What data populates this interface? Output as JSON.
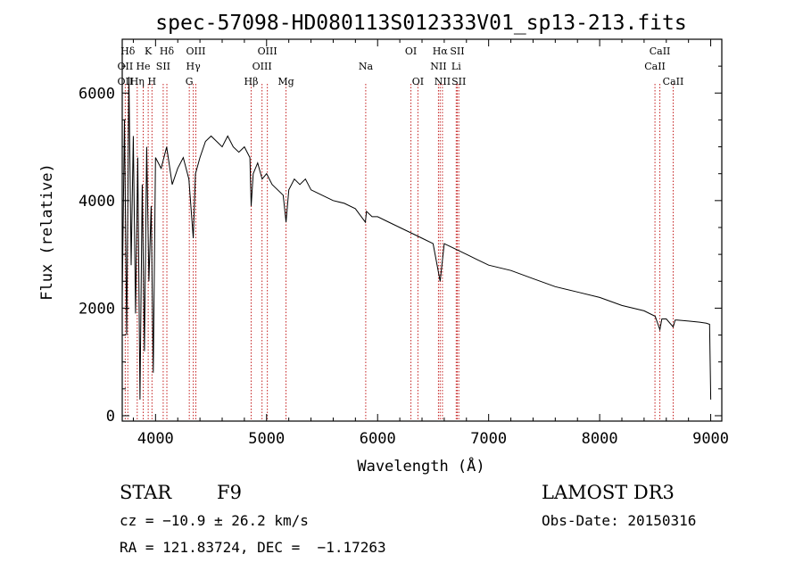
{
  "chart_data": {
    "type": "line",
    "title": "spec-57098-HD080113S012333V01_sp13-213.fits",
    "xlabel": "Wavelength (Å)",
    "ylabel": "Flux (relative)",
    "xlim": [
      3700,
      9100
    ],
    "ylim": [
      -100,
      7000
    ],
    "xticks": [
      4000,
      5000,
      6000,
      7000,
      8000,
      9000
    ],
    "yticks": [
      0,
      2000,
      4000,
      6000
    ],
    "series": [
      {
        "name": "flux",
        "x": [
          3700,
          3720,
          3740,
          3760,
          3780,
          3800,
          3820,
          3840,
          3860,
          3880,
          3900,
          3920,
          3940,
          3960,
          3980,
          4000,
          4050,
          4100,
          4150,
          4200,
          4250,
          4300,
          4340,
          4360,
          4400,
          4450,
          4500,
          4550,
          4600,
          4650,
          4700,
          4750,
          4800,
          4850,
          4861,
          4880,
          4920,
          4960,
          5000,
          5050,
          5100,
          5150,
          5175,
          5200,
          5250,
          5300,
          5350,
          5400,
          5450,
          5500,
          5600,
          5700,
          5800,
          5890,
          5900,
          5950,
          6000,
          6100,
          6200,
          6300,
          6400,
          6500,
          6563,
          6600,
          6700,
          6800,
          6900,
          7000,
          7200,
          7400,
          7600,
          7800,
          8000,
          8200,
          8400,
          8500,
          8542,
          8560,
          8600,
          8662,
          8680,
          8700,
          8800,
          8900,
          8960,
          8990,
          9000
        ],
        "y": [
          2200,
          5500,
          1500,
          6300,
          2800,
          5200,
          1900,
          4800,
          300,
          4300,
          1200,
          5000,
          2500,
          3900,
          800,
          4800,
          4600,
          5000,
          4300,
          4600,
          4800,
          4400,
          3300,
          4500,
          4800,
          5100,
          5200,
          5100,
          5000,
          5200,
          5000,
          4900,
          5000,
          4800,
          3900,
          4500,
          4700,
          4400,
          4500,
          4300,
          4200,
          4100,
          3600,
          4200,
          4400,
          4300,
          4400,
          4200,
          4150,
          4100,
          4000,
          3950,
          3850,
          3600,
          3800,
          3700,
          3700,
          3600,
          3500,
          3400,
          3300,
          3200,
          2500,
          3200,
          3100,
          3000,
          2900,
          2800,
          2700,
          2550,
          2400,
          2300,
          2200,
          2050,
          1950,
          1850,
          1600,
          1800,
          1800,
          1650,
          1780,
          1780,
          1760,
          1740,
          1720,
          1700,
          300
        ]
      }
    ],
    "spectral_lines": [
      {
        "label": "Hδ",
        "wavelength": 3750,
        "row": 1
      },
      {
        "label": "K",
        "wavelength": 3934,
        "row": 1
      },
      {
        "label": "Hδ",
        "wavelength": 4102,
        "row": 1
      },
      {
        "label": "OIII",
        "wavelength": 4363,
        "row": 1
      },
      {
        "label": "OIII",
        "wavelength": 5007,
        "row": 1
      },
      {
        "label": "OI",
        "wavelength": 6300,
        "row": 1
      },
      {
        "label": "Hα",
        "wavelength": 6563,
        "row": 1
      },
      {
        "label": "SII",
        "wavelength": 6717,
        "row": 1
      },
      {
        "label": "CaII",
        "wavelength": 8542,
        "row": 1
      },
      {
        "label": "OII",
        "wavelength": 3727,
        "row": 2
      },
      {
        "label": "He",
        "wavelength": 3889,
        "row": 2
      },
      {
        "label": "SII",
        "wavelength": 4069,
        "row": 2
      },
      {
        "label": "Hγ",
        "wavelength": 4340,
        "row": 2
      },
      {
        "label": "OIII",
        "wavelength": 4959,
        "row": 2
      },
      {
        "label": "Na",
        "wavelength": 5893,
        "row": 2
      },
      {
        "label": "NII",
        "wavelength": 6548,
        "row": 2
      },
      {
        "label": "Li",
        "wavelength": 6708,
        "row": 2
      },
      {
        "label": "CaII",
        "wavelength": 8498,
        "row": 2
      },
      {
        "label": "OII",
        "wavelength": 3727,
        "row": 3
      },
      {
        "label": "Hη",
        "wavelength": 3835,
        "row": 3
      },
      {
        "label": "H",
        "wavelength": 3968,
        "row": 3
      },
      {
        "label": "G",
        "wavelength": 4304,
        "row": 3
      },
      {
        "label": "Hβ",
        "wavelength": 4861,
        "row": 3
      },
      {
        "label": "Mg",
        "wavelength": 5175,
        "row": 3
      },
      {
        "label": "OI",
        "wavelength": 6363,
        "row": 3
      },
      {
        "label": "NII",
        "wavelength": 6584,
        "row": 3
      },
      {
        "label": "SII",
        "wavelength": 6731,
        "row": 3
      },
      {
        "label": "CaII",
        "wavelength": 8662,
        "row": 3
      }
    ]
  },
  "info": {
    "object_class": "STAR",
    "subclass": "F9",
    "survey": "LAMOST DR3",
    "redshift": "cz = −10.9 ± 26.2 km/s",
    "obs_date": "Obs-Date: 20150316",
    "coords": "RA = 121.83724, DEC =  −1.17263"
  }
}
